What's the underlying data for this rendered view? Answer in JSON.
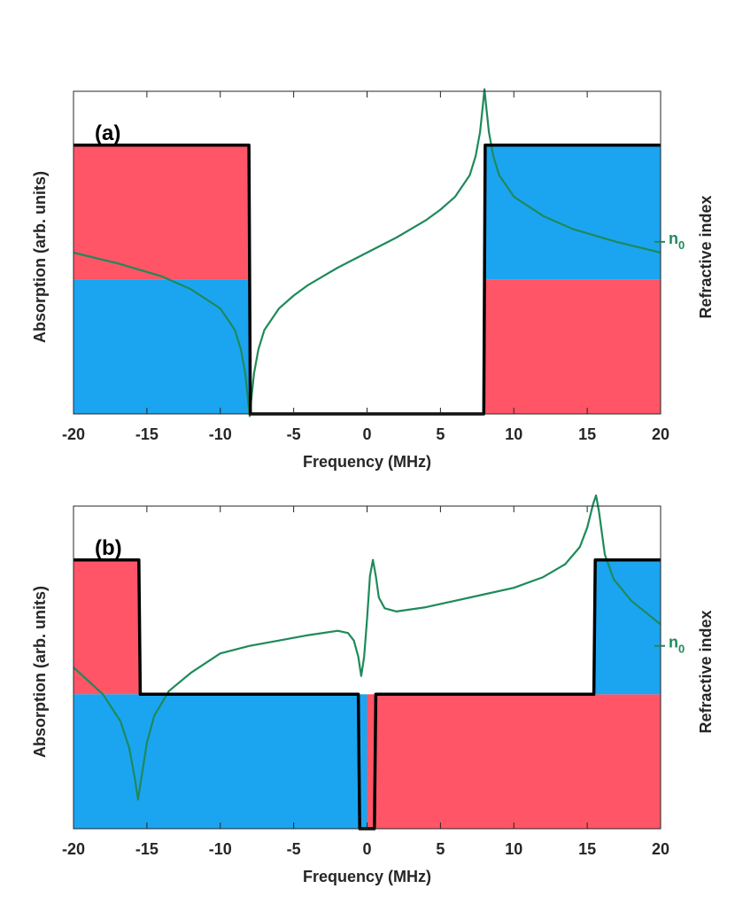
{
  "colors": {
    "red": "#ff5566",
    "blue": "#1ba5f0",
    "green": "#1e8a5a",
    "black": "#000000",
    "axis": "#262626"
  },
  "chart_data": [
    {
      "type": "line",
      "panel_label": "(a)",
      "xlabel": "Frequency (MHz)",
      "ylabel": "Absorption (arb. units)",
      "y2label": "Refractive index",
      "n0_label": "n",
      "n0_subscript": "0",
      "xlim": [
        -20,
        20
      ],
      "xticks": [
        -20,
        -15,
        -10,
        -5,
        0,
        5,
        10,
        15,
        20
      ],
      "xtick_labels": [
        "-20",
        "-15",
        "-10",
        "-5",
        "0",
        "5",
        "10",
        "15",
        "20"
      ],
      "ylim": [
        0,
        1.2
      ],
      "y2lim": [
        -1.5,
        1.5
      ],
      "n0_value": 0.1,
      "background_regions": [
        {
          "x": [
            -20,
            -8
          ],
          "y": [
            0.5,
            1.0
          ],
          "color": "red"
        },
        {
          "x": [
            -20,
            -8
          ],
          "y": [
            0.0,
            0.5
          ],
          "color": "blue"
        },
        {
          "x": [
            8,
            20
          ],
          "y": [
            0.5,
            1.0
          ],
          "color": "blue"
        },
        {
          "x": [
            8,
            20
          ],
          "y": [
            0.0,
            0.5
          ],
          "color": "red"
        }
      ],
      "series": [
        {
          "name": "Absorption",
          "color": "black",
          "x": [
            -20,
            -8.05,
            -7.95,
            7.95,
            8.05,
            20
          ],
          "y": [
            1.0,
            1.0,
            0.0,
            0.0,
            1.0,
            1.0
          ]
        },
        {
          "name": "Refractive index",
          "color": "green",
          "x": [
            -20,
            -17,
            -14,
            -12,
            -10,
            -9,
            -8.6,
            -8.3,
            -8.1,
            -8.0,
            -7.9,
            -7.7,
            -7.4,
            -7,
            -6,
            -5,
            -4,
            -3,
            -2,
            -1,
            0,
            1,
            2,
            3,
            4,
            5,
            6,
            7,
            7.4,
            7.7,
            7.9,
            8.0,
            8.1,
            8.3,
            8.6,
            9,
            10,
            12,
            14,
            17,
            20
          ],
          "y": [
            0.0,
            -0.1,
            -0.22,
            -0.34,
            -0.52,
            -0.72,
            -0.9,
            -1.12,
            -1.38,
            -1.52,
            -1.38,
            -1.12,
            -0.9,
            -0.72,
            -0.52,
            -0.4,
            -0.3,
            -0.22,
            -0.14,
            -0.07,
            0.0,
            0.07,
            0.14,
            0.22,
            0.3,
            0.4,
            0.52,
            0.72,
            0.9,
            1.12,
            1.38,
            1.52,
            1.38,
            1.12,
            0.9,
            0.72,
            0.52,
            0.34,
            0.22,
            0.1,
            0.0
          ]
        }
      ]
    },
    {
      "type": "line",
      "panel_label": "(b)",
      "xlabel": "Frequency (MHz)",
      "ylabel": "Absorption (arb. units)",
      "y2label": "Refractive index",
      "n0_label": "n",
      "n0_subscript": "0",
      "xlim": [
        -20,
        20
      ],
      "xticks": [
        -20,
        -15,
        -10,
        -5,
        0,
        5,
        10,
        15,
        20
      ],
      "xtick_labels": [
        "-20",
        "-15",
        "-10",
        "-5",
        "0",
        "5",
        "10",
        "15",
        "20"
      ],
      "ylim": [
        0,
        1.2
      ],
      "y2lim": [
        -1.5,
        1.5
      ],
      "n0_value": 0.2,
      "background_regions": [
        {
          "x": [
            -20,
            -15.5
          ],
          "y": [
            0.5,
            1.0
          ],
          "color": "red"
        },
        {
          "x": [
            -20,
            0
          ],
          "y": [
            0.0,
            0.5
          ],
          "color": "blue"
        },
        {
          "x": [
            0,
            20
          ],
          "y": [
            0.0,
            0.5
          ],
          "color": "red"
        },
        {
          "x": [
            15.5,
            20
          ],
          "y": [
            0.5,
            1.0
          ],
          "color": "blue"
        }
      ],
      "series": [
        {
          "name": "Absorption",
          "color": "black",
          "x": [
            -20,
            -15.55,
            -15.45,
            -0.6,
            -0.5,
            0.5,
            0.6,
            15.45,
            15.55,
            20
          ],
          "y": [
            1.0,
            1.0,
            0.5,
            0.5,
            0.0,
            0.0,
            0.5,
            0.5,
            1.0,
            1.0
          ]
        },
        {
          "name": "Refractive index",
          "color": "green",
          "x": [
            -20,
            -18,
            -16.8,
            -16.2,
            -15.8,
            -15.6,
            -15.4,
            -15.0,
            -14.5,
            -13.5,
            -12,
            -10,
            -8,
            -6,
            -4,
            -2,
            -1.3,
            -0.9,
            -0.6,
            -0.4,
            -0.2,
            0,
            0.2,
            0.4,
            0.6,
            0.8,
            1.2,
            2,
            4,
            6,
            8,
            10,
            12,
            13.5,
            14.5,
            15.0,
            15.4,
            15.6,
            15.8,
            16.2,
            16.8,
            18,
            20
          ],
          "y": [
            0.0,
            -0.25,
            -0.5,
            -0.75,
            -1.05,
            -1.23,
            -1.05,
            -0.7,
            -0.45,
            -0.22,
            -0.05,
            0.13,
            0.2,
            0.25,
            0.3,
            0.34,
            0.32,
            0.25,
            0.1,
            -0.08,
            0.1,
            0.45,
            0.85,
            1.0,
            0.85,
            0.65,
            0.55,
            0.52,
            0.56,
            0.62,
            0.68,
            0.74,
            0.84,
            0.96,
            1.12,
            1.3,
            1.52,
            1.6,
            1.45,
            1.05,
            0.82,
            0.62,
            0.4
          ]
        }
      ]
    }
  ]
}
